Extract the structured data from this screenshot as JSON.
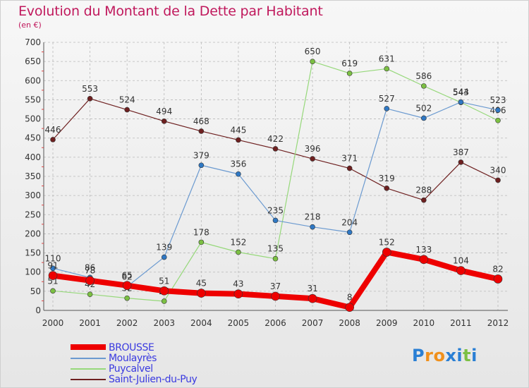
{
  "header": {
    "title": "Evolution du Montant de la Dette par Habitant",
    "subtitle": "(en €)"
  },
  "colors": {
    "title": "#c0185c",
    "legend_text": "#3a3ae0",
    "grid": "#b9b9b9"
  },
  "logo": {
    "text": "Proxiti",
    "letters": [
      "P",
      "r",
      "o",
      "x",
      "i",
      "t",
      "i"
    ],
    "letter_colors": [
      "#2a7fd4",
      "#f0901c",
      "#f0901c",
      "#2a7fd4",
      "#2a7fd4",
      "#7cc043",
      "#2a7fd4"
    ]
  },
  "chart_data": {
    "type": "line",
    "title": "Evolution du Montant de la Dette par Habitant",
    "subtitle": "(en €)",
    "x": [
      "2000",
      "2001",
      "2002",
      "2003",
      "2004",
      "2005",
      "2006",
      "2007",
      "2008",
      "2009",
      "2010",
      "2011",
      "2012"
    ],
    "y_ticks": [
      0,
      50,
      100,
      150,
      200,
      250,
      300,
      350,
      400,
      450,
      500,
      550,
      600,
      650,
      700
    ],
    "ylim": [
      0,
      700
    ],
    "grid": true,
    "legend_position": "bottom-left",
    "series": [
      {
        "name": "Saint-Julien-du-Puy",
        "color": "#6e2020",
        "marker": "#6e2020",
        "width": 1.2,
        "values": [
          446,
          553,
          524,
          494,
          468,
          445,
          422,
          396,
          371,
          319,
          288,
          387,
          340
        ]
      },
      {
        "name": "Puycalvel",
        "color": "#96d87a",
        "marker": "#7cc043",
        "width": 1.2,
        "values": [
          51,
          42,
          32,
          24,
          178,
          152,
          135,
          650,
          619,
          631,
          586,
          543,
          496
        ]
      },
      {
        "name": "Moulayrès",
        "color": "#6b9ad0",
        "marker": "#2f78c4",
        "width": 1.2,
        "values": [
          110,
          86,
          62,
          139,
          379,
          356,
          235,
          218,
          204,
          527,
          502,
          544,
          523
        ]
      },
      {
        "name": "BROUSSE",
        "color": "#ee0000",
        "marker": "#ee0000",
        "width": 8,
        "values": [
          91,
          78,
          65,
          51,
          45,
          43,
          37,
          31,
          8,
          152,
          133,
          104,
          82
        ]
      }
    ],
    "legend_order": [
      "BROUSSE",
      "Moulayrès",
      "Puycalvel",
      "Saint-Julien-du-Puy"
    ]
  }
}
